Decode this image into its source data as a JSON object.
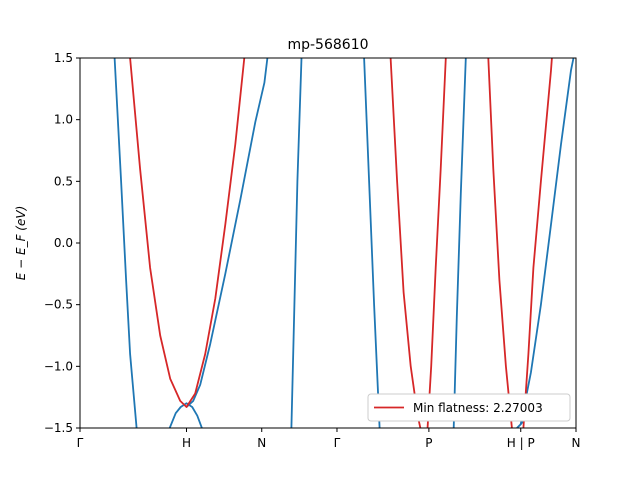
{
  "chart_data": {
    "type": "line",
    "title": "mp-568610",
    "xlabel": "",
    "ylabel": "E − E_F (eV)",
    "ylim": [
      -1.5,
      1.5
    ],
    "yticks": [
      -1.5,
      -1.0,
      -0.5,
      0.0,
      0.5,
      1.0,
      1.5
    ],
    "ytick_labels": [
      "−1.5",
      "−1.0",
      "−0.5",
      "0.0",
      "0.5",
      "1.0",
      "1.5"
    ],
    "xlim": [
      0,
      1
    ],
    "xticks": [
      {
        "label": "Γ",
        "pos": 0.0
      },
      {
        "label": "H",
        "pos": 0.2147
      },
      {
        "label": "N",
        "pos": 0.3664
      },
      {
        "label": "Γ",
        "pos": 0.5181
      },
      {
        "label": "P",
        "pos": 0.7034
      },
      {
        "label": "H | P",
        "pos": 0.8886
      },
      {
        "label": "N",
        "pos": 1.0
      }
    ],
    "grid": false,
    "legend": {
      "location": "lower-right",
      "entries": [
        {
          "label": "Min flatness: 2.27003",
          "color": "#d62728"
        }
      ]
    },
    "colors": {
      "blue": "#1f77b4",
      "red": "#d62728"
    },
    "series": [
      {
        "color": "#1f77b4",
        "points": [
          [
            0.0697,
            1.5
          ],
          [
            0.0828,
            0.5
          ],
          [
            0.0929,
            -0.3
          ],
          [
            0.101,
            -0.9
          ],
          [
            0.1141,
            -1.5
          ]
        ]
      },
      {
        "color": "#1f77b4",
        "points": [
          [
            0.1808,
            -1.5
          ],
          [
            0.1929,
            -1.38
          ],
          [
            0.203,
            -1.33
          ],
          [
            0.2147,
            -1.3
          ],
          [
            0.2263,
            -1.33
          ],
          [
            0.2364,
            -1.4
          ],
          [
            0.2505,
            -1.55
          ]
        ]
      },
      {
        "color": "#1f77b4",
        "points": [
          [
            0.2147,
            -1.33
          ],
          [
            0.2283,
            -1.28
          ],
          [
            0.2424,
            -1.15
          ],
          [
            0.2626,
            -0.82
          ],
          [
            0.2929,
            -0.25
          ],
          [
            0.3232,
            0.35
          ],
          [
            0.3535,
            0.98
          ],
          [
            0.3717,
            1.3
          ],
          [
            0.3778,
            1.5
          ]
        ]
      },
      {
        "color": "#1f77b4",
        "points": [
          [
            0.4263,
            -1.5
          ],
          [
            0.4323,
            -0.5
          ],
          [
            0.4384,
            0.5
          ],
          [
            0.4465,
            1.5
          ]
        ]
      },
      {
        "color": "#1f77b4",
        "points": [
          [
            0.5727,
            1.5
          ],
          [
            0.5828,
            0.5
          ],
          [
            0.5929,
            -0.5
          ],
          [
            0.604,
            -1.5
          ]
        ]
      },
      {
        "color": "#1f77b4",
        "points": [
          [
            0.7535,
            -1.5
          ],
          [
            0.7596,
            -0.6
          ],
          [
            0.7677,
            0.4
          ],
          [
            0.7778,
            1.5
          ]
        ]
      },
      {
        "color": "#1f77b4",
        "points": [
          [
            0.8808,
            -1.5
          ],
          [
            0.8886,
            -1.47
          ],
          [
            0.903,
            -1.4
          ]
        ]
      },
      {
        "color": "#1f77b4",
        "points": [
          [
            0.8886,
            -1.47
          ],
          [
            0.9091,
            -1.05
          ],
          [
            0.9293,
            -0.5
          ],
          [
            0.9495,
            0.15
          ],
          [
            0.9697,
            0.8
          ],
          [
            0.9899,
            1.4
          ],
          [
            0.9949,
            1.5
          ]
        ]
      },
      {
        "color": "#d62728",
        "points": [
          [
            0.101,
            1.5
          ],
          [
            0.1212,
            0.6
          ],
          [
            0.1414,
            -0.2
          ],
          [
            0.1616,
            -0.75
          ],
          [
            0.1818,
            -1.1
          ],
          [
            0.202,
            -1.28
          ],
          [
            0.2147,
            -1.33
          ],
          [
            0.2323,
            -1.22
          ],
          [
            0.2525,
            -0.9
          ],
          [
            0.2727,
            -0.45
          ],
          [
            0.2929,
            0.15
          ],
          [
            0.3131,
            0.8
          ],
          [
            0.3313,
            1.5
          ]
        ]
      },
      {
        "color": "#d62728",
        "points": [
          [
            0.6263,
            1.5
          ],
          [
            0.6394,
            0.5
          ],
          [
            0.6525,
            -0.4
          ],
          [
            0.6667,
            -1.0
          ],
          [
            0.6808,
            -1.4
          ],
          [
            0.6889,
            -1.55
          ]
        ]
      },
      {
        "color": "#d62728",
        "points": [
          [
            0.7,
            -1.55
          ],
          [
            0.7081,
            -1.0
          ],
          [
            0.7172,
            -0.2
          ],
          [
            0.7273,
            0.6
          ],
          [
            0.7374,
            1.5
          ]
        ]
      },
      {
        "color": "#d62728",
        "points": [
          [
            0.8232,
            1.5
          ],
          [
            0.8333,
            0.6
          ],
          [
            0.8455,
            -0.3
          ],
          [
            0.8586,
            -1.0
          ],
          [
            0.8707,
            -1.5
          ]
        ]
      },
      {
        "color": "#d62728",
        "points": [
          [
            0.8939,
            -1.5
          ],
          [
            0.904,
            -0.9
          ],
          [
            0.9141,
            -0.2
          ],
          [
            0.9293,
            0.5
          ],
          [
            0.9495,
            1.4
          ],
          [
            0.9515,
            1.5
          ]
        ]
      }
    ]
  }
}
